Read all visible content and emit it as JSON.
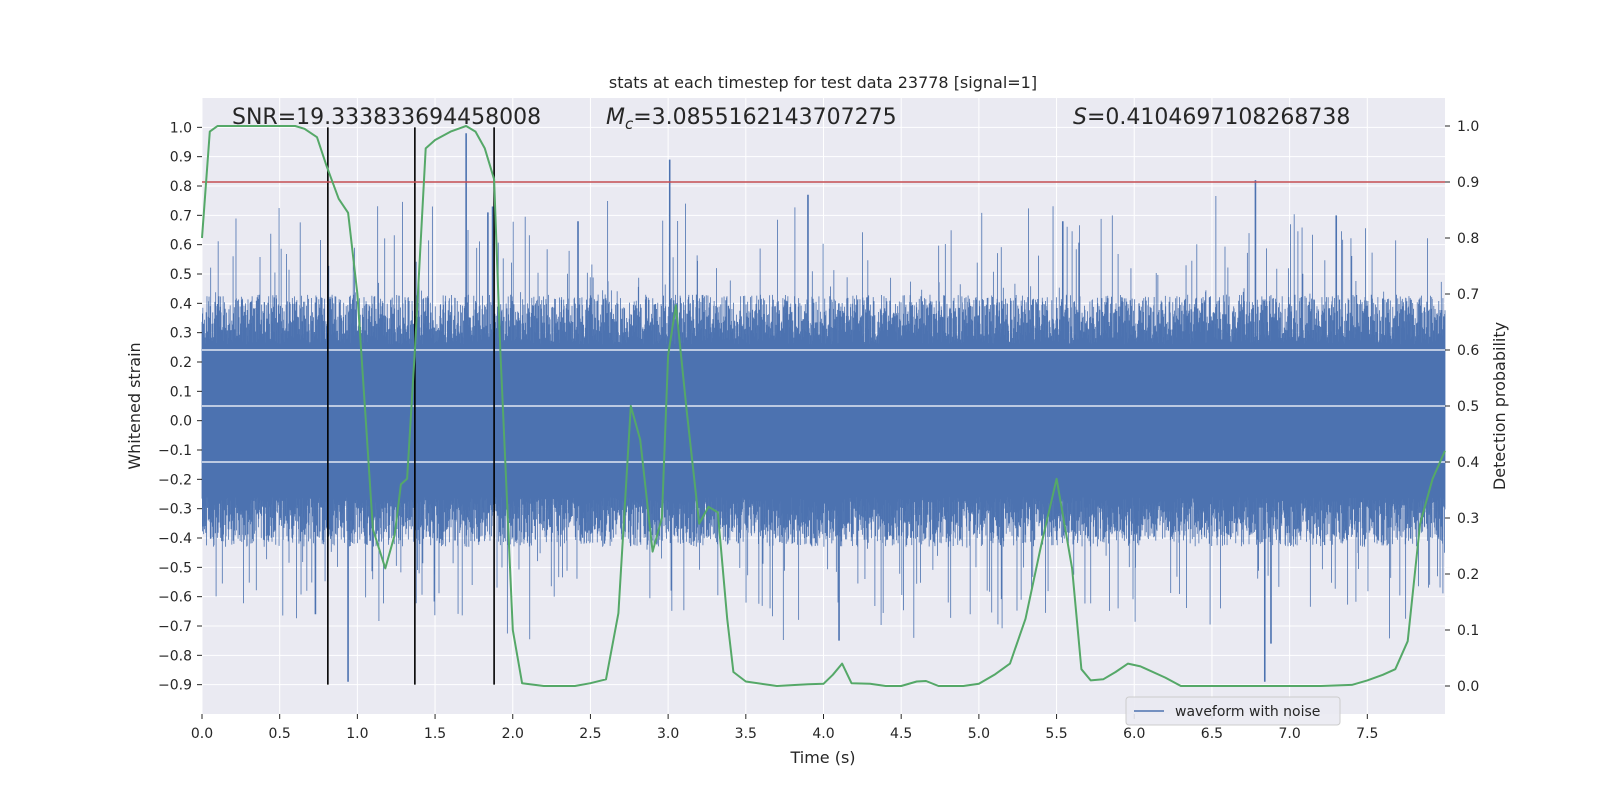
{
  "chart_data": {
    "type": "line",
    "title": "stats at each timestep for test data 23778 [signal=1]",
    "xlabel": "Time (s)",
    "ylabel_left": "Whitened strain",
    "ylabel_right": "Detection probability",
    "xlim": [
      0.0,
      8.0
    ],
    "ylim_left": [
      -1.0,
      1.1
    ],
    "ylim_right": [
      -0.05,
      1.05
    ],
    "x_ticks": [
      0.0,
      0.5,
      1.0,
      1.5,
      2.0,
      2.5,
      3.0,
      3.5,
      4.0,
      4.5,
      5.0,
      5.5,
      6.0,
      6.5,
      7.0,
      7.5
    ],
    "x_tick_labels": [
      "0.0",
      "0.5",
      "1.0",
      "1.5",
      "2.0",
      "2.5",
      "3.0",
      "3.5",
      "4.0",
      "4.5",
      "5.0",
      "5.5",
      "6.0",
      "6.5",
      "7.0",
      "7.5"
    ],
    "y_left_ticks": [
      1.0,
      0.9,
      0.8,
      0.7,
      0.6,
      0.5,
      0.4,
      0.3,
      0.2,
      0.1,
      0.0,
      -0.1,
      -0.2,
      -0.3,
      -0.4,
      -0.5,
      -0.6,
      -0.7,
      -0.8,
      -0.9
    ],
    "y_left_tick_labels": [
      "1.0",
      "0.9",
      "0.8",
      "0.7",
      "0.6",
      "0.5",
      "0.4",
      "0.3",
      "0.2",
      "0.1",
      "0.0",
      "−0.1",
      "−0.2",
      "−0.3",
      "−0.4",
      "−0.5",
      "−0.6",
      "−0.7",
      "−0.8",
      "−0.9"
    ],
    "y_right_ticks": [
      1.0,
      0.9,
      0.8,
      0.7,
      0.6,
      0.5,
      0.4,
      0.3,
      0.2,
      0.1,
      0.0
    ],
    "y_right_tick_labels": [
      "1.0",
      "0.9",
      "0.8",
      "0.7",
      "0.6",
      "0.5",
      "0.4",
      "0.3",
      "0.2",
      "0.1",
      "0.0"
    ],
    "annotations": {
      "snr": "SNR=19.333833694458008",
      "mc_symbol": "M",
      "mc_subscript": "c",
      "mc_value": "=3.0855162143707275",
      "s_symbol": "S",
      "s_value": "=0.4104697108268738"
    },
    "legend": {
      "label": "waveform with noise",
      "location": "lower-right"
    },
    "threshold_line": {
      "axis": "right",
      "value": 0.9,
      "color": "#c44e52"
    },
    "vertical_markers": [
      0.81,
      1.37,
      1.88
    ],
    "marker_span_left": [
      -0.9,
      1.0
    ],
    "waveform": {
      "name": "waveform with noise",
      "color": "#4c72b0",
      "seed": 23778,
      "core_band": 0.26,
      "typical_envelope": [
        -0.42,
        0.42
      ],
      "spikes": [
        {
          "t": 1.7,
          "v": 0.98
        },
        {
          "t": 3.01,
          "v": 0.89
        },
        {
          "t": 6.78,
          "v": 0.82
        },
        {
          "t": 3.9,
          "v": 0.77
        },
        {
          "t": 1.87,
          "v": 0.73
        },
        {
          "t": 0.94,
          "v": -0.89
        },
        {
          "t": 6.84,
          "v": -0.89
        },
        {
          "t": 4.1,
          "v": -0.75
        },
        {
          "t": 6.88,
          "v": -0.76
        },
        {
          "t": 5.54,
          "v": 0.68
        },
        {
          "t": 7.3,
          "v": 0.7
        },
        {
          "t": 0.73,
          "v": -0.66
        },
        {
          "t": 1.84,
          "v": 0.71
        },
        {
          "t": 2.42,
          "v": 0.68
        }
      ]
    },
    "probability": {
      "name": "Detection probability",
      "color": "#55a868",
      "points": [
        [
          0.0,
          0.8
        ],
        [
          0.05,
          0.99
        ],
        [
          0.1,
          1.0
        ],
        [
          0.2,
          1.0
        ],
        [
          0.3,
          1.0
        ],
        [
          0.4,
          1.0
        ],
        [
          0.5,
          1.0
        ],
        [
          0.6,
          1.0
        ],
        [
          0.66,
          0.995
        ],
        [
          0.74,
          0.98
        ],
        [
          0.8,
          0.93
        ],
        [
          0.88,
          0.87
        ],
        [
          0.94,
          0.845
        ],
        [
          1.0,
          0.7
        ],
        [
          1.06,
          0.45
        ],
        [
          1.1,
          0.28
        ],
        [
          1.18,
          0.21
        ],
        [
          1.24,
          0.27
        ],
        [
          1.28,
          0.36
        ],
        [
          1.32,
          0.37
        ],
        [
          1.37,
          0.6
        ],
        [
          1.44,
          0.96
        ],
        [
          1.5,
          0.975
        ],
        [
          1.6,
          0.99
        ],
        [
          1.7,
          1.0
        ],
        [
          1.76,
          0.99
        ],
        [
          1.82,
          0.96
        ],
        [
          1.88,
          0.905
        ],
        [
          1.92,
          0.6
        ],
        [
          2.0,
          0.1
        ],
        [
          2.06,
          0.005
        ],
        [
          2.2,
          0.0
        ],
        [
          2.4,
          0.0
        ],
        [
          2.5,
          0.005
        ],
        [
          2.6,
          0.012
        ],
        [
          2.68,
          0.13
        ],
        [
          2.76,
          0.5
        ],
        [
          2.82,
          0.44
        ],
        [
          2.9,
          0.24
        ],
        [
          2.96,
          0.3
        ],
        [
          3.0,
          0.59
        ],
        [
          3.05,
          0.68
        ],
        [
          3.12,
          0.49
        ],
        [
          3.2,
          0.29
        ],
        [
          3.26,
          0.32
        ],
        [
          3.32,
          0.31
        ],
        [
          3.38,
          0.12
        ],
        [
          3.42,
          0.025
        ],
        [
          3.5,
          0.008
        ],
        [
          3.7,
          0.0
        ],
        [
          3.9,
          0.003
        ],
        [
          4.0,
          0.004
        ],
        [
          4.06,
          0.02
        ],
        [
          4.12,
          0.04
        ],
        [
          4.18,
          0.005
        ],
        [
          4.3,
          0.004
        ],
        [
          4.4,
          0.0
        ],
        [
          4.5,
          0.0
        ],
        [
          4.6,
          0.008
        ],
        [
          4.66,
          0.009
        ],
        [
          4.74,
          0.0
        ],
        [
          4.9,
          0.0
        ],
        [
          5.0,
          0.004
        ],
        [
          5.1,
          0.02
        ],
        [
          5.2,
          0.04
        ],
        [
          5.3,
          0.12
        ],
        [
          5.4,
          0.25
        ],
        [
          5.5,
          0.37
        ],
        [
          5.6,
          0.21
        ],
        [
          5.66,
          0.03
        ],
        [
          5.72,
          0.01
        ],
        [
          5.8,
          0.012
        ],
        [
          5.88,
          0.025
        ],
        [
          5.96,
          0.04
        ],
        [
          6.04,
          0.035
        ],
        [
          6.2,
          0.015
        ],
        [
          6.3,
          0.0
        ],
        [
          6.5,
          0.0
        ],
        [
          6.8,
          0.0
        ],
        [
          7.0,
          0.0
        ],
        [
          7.2,
          0.0
        ],
        [
          7.4,
          0.002
        ],
        [
          7.5,
          0.01
        ],
        [
          7.6,
          0.02
        ],
        [
          7.68,
          0.03
        ],
        [
          7.76,
          0.08
        ],
        [
          7.84,
          0.29
        ],
        [
          7.92,
          0.37
        ],
        [
          8.0,
          0.42
        ]
      ]
    }
  }
}
